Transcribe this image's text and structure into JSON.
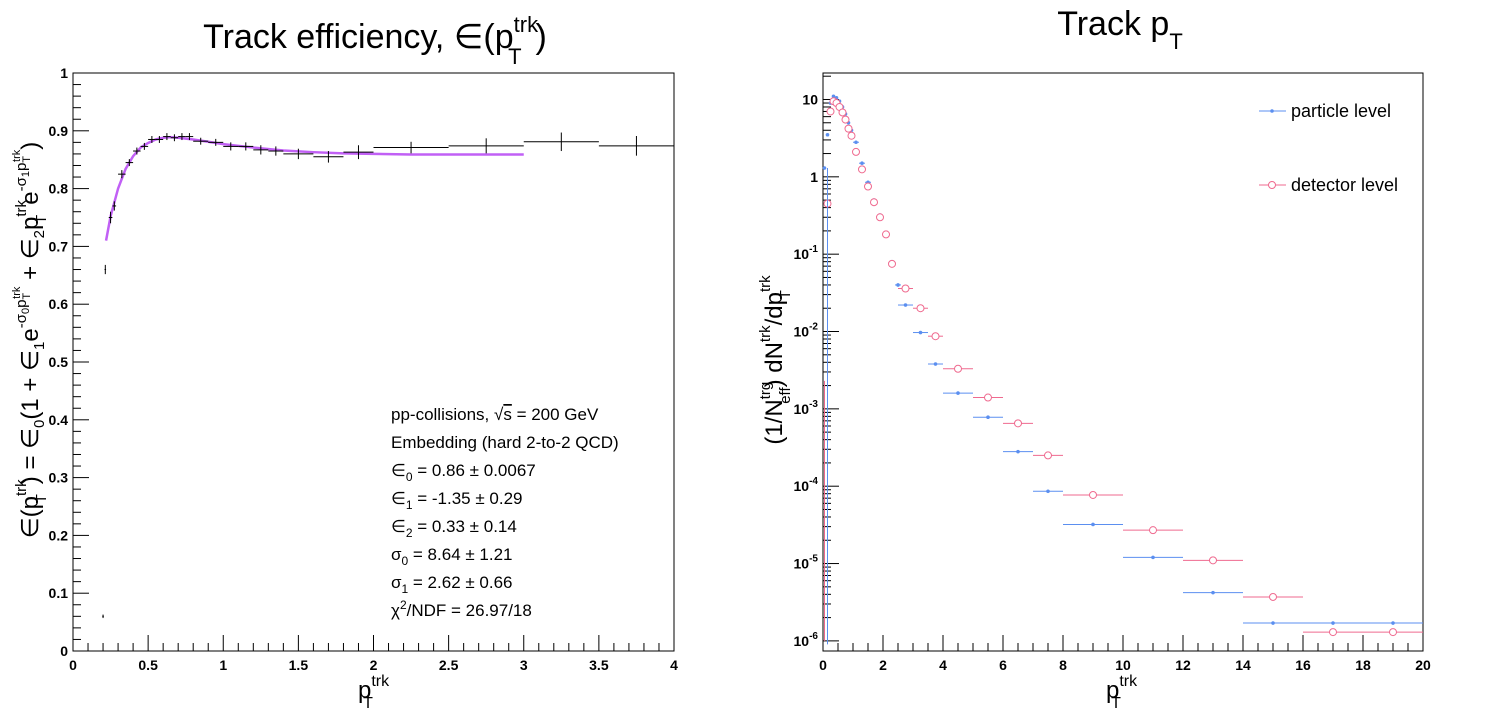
{
  "chart_data": [
    {
      "type": "scatter",
      "title": "Track efficiency, ∈(p_T^trk)",
      "title_parts": {
        "main": "Track efficiency, ∈(p",
        "sup": "trk",
        "sub": "T",
        "close": ")"
      },
      "xlabel_parts": {
        "main": "p",
        "sup": "trk",
        "sub": "T"
      },
      "ylabel": "∈(p_T^trk) = ∈_0(1 + ∈_1 e^(-σ_0 p_T^trk) + ∈_2 p_T^trk e^(-σ_1 p_T^trk))",
      "xlim": [
        0,
        4
      ],
      "ylim": [
        0,
        1
      ],
      "x_ticks": [
        "0",
        "0.5",
        "1",
        "1.5",
        "2",
        "2.5",
        "3",
        "3.5",
        "4"
      ],
      "y_ticks": [
        "0",
        "0.1",
        "0.2",
        "0.3",
        "0.4",
        "0.5",
        "0.6",
        "0.7",
        "0.8",
        "0.9",
        "1"
      ],
      "grid": false,
      "series": [
        {
          "marker": "error-cross",
          "color": "#000000",
          "x": [
            0.2,
            0.215,
            0.25,
            0.275,
            0.325,
            0.375,
            0.425,
            0.475,
            0.525,
            0.575,
            0.625,
            0.675,
            0.725,
            0.775,
            0.85,
            0.95,
            1.05,
            1.15,
            1.25,
            1.35,
            1.5,
            1.7,
            1.9,
            2.25,
            2.75,
            3.25,
            3.75
          ],
          "x_err": [
            0.005,
            0.005,
            0.012,
            0.012,
            0.025,
            0.025,
            0.025,
            0.025,
            0.025,
            0.025,
            0.025,
            0.025,
            0.025,
            0.025,
            0.05,
            0.05,
            0.05,
            0.05,
            0.05,
            0.05,
            0.1,
            0.1,
            0.1,
            0.25,
            0.25,
            0.25,
            0.25
          ],
          "y": [
            0.06,
            0.66,
            0.75,
            0.77,
            0.825,
            0.845,
            0.865,
            0.873,
            0.885,
            0.885,
            0.89,
            0.888,
            0.89,
            0.89,
            0.882,
            0.88,
            0.873,
            0.873,
            0.867,
            0.865,
            0.86,
            0.855,
            0.863,
            0.871,
            0.874,
            0.881,
            0.874
          ],
          "y_err": [
            0.003,
            0.008,
            0.01,
            0.008,
            0.007,
            0.006,
            0.006,
            0.006,
            0.006,
            0.006,
            0.006,
            0.006,
            0.006,
            0.006,
            0.006,
            0.006,
            0.007,
            0.007,
            0.008,
            0.008,
            0.009,
            0.01,
            0.012,
            0.01,
            0.013,
            0.016,
            0.017
          ]
        },
        {
          "marker": "line",
          "color": "#c160f5",
          "description_visible": false,
          "x": [
            0.22,
            0.25,
            0.3,
            0.35,
            0.4,
            0.45,
            0.5,
            0.55,
            0.6,
            0.65,
            0.7,
            0.8,
            0.9,
            1.0,
            1.2,
            1.4,
            1.6,
            1.8,
            2.0,
            2.25,
            2.5,
            2.75,
            3.0
          ],
          "y": [
            0.71,
            0.752,
            0.8,
            0.834,
            0.856,
            0.871,
            0.879,
            0.885,
            0.888,
            0.889,
            0.888,
            0.885,
            0.881,
            0.877,
            0.871,
            0.866,
            0.863,
            0.861,
            0.86,
            0.859,
            0.859,
            0.859,
            0.859
          ]
        }
      ],
      "annotation_lines": [
        {
          "kind": "sqrt",
          "pre": "pp-collisions, ",
          "rad": "s",
          "post": " = 200 GeV",
          "color": "#000000"
        },
        {
          "kind": "plain",
          "text": "Embedding (hard 2-to-2 QCD)",
          "color": "#000000"
        },
        {
          "kind": "sub",
          "sym": "∈",
          "sub": "0",
          "rest": " = 0.86 ± 0.0067",
          "color": "#000000"
        },
        {
          "kind": "sub",
          "sym": "∈",
          "sub": "1",
          "rest": " = -1.35 ± 0.29",
          "color": "#000000"
        },
        {
          "kind": "sub",
          "sym": "∈",
          "sub": "2",
          "rest": " = 0.33 ± 0.14",
          "color": "#000000"
        },
        {
          "kind": "sub",
          "sym": "σ",
          "sub": "0",
          "rest": " = 8.64 ± 1.21",
          "color": "#000000"
        },
        {
          "kind": "sub",
          "sym": "σ",
          "sub": "1",
          "rest": " = 2.62 ± 0.66",
          "color": "#000000"
        },
        {
          "kind": "sup",
          "sym": "χ",
          "sup": "2",
          "rest": "/NDF = 26.97/18",
          "color": "#c160f5"
        }
      ]
    },
    {
      "type": "scatter",
      "title": "Track p_T",
      "title_parts": {
        "main": "Track p",
        "sub": "T"
      },
      "xlabel_parts": {
        "main": "p",
        "sup": "trk",
        "sub": "T"
      },
      "ylabel": "(1/N_eff^trg) dN^trk/dp_T^trk",
      "xlim": [
        0,
        20
      ],
      "ylim": [
        7.4e-07,
        22
      ],
      "y_scale": "log",
      "x_ticks": [
        "0",
        "2",
        "4",
        "6",
        "8",
        "10",
        "12",
        "14",
        "16",
        "18",
        "20"
      ],
      "y_ticks": [
        {
          "value": 1e-06,
          "base": "10",
          "exp": "-6"
        },
        {
          "value": 1e-05,
          "base": "10",
          "exp": "-5"
        },
        {
          "value": 0.0001,
          "base": "10",
          "exp": "-4"
        },
        {
          "value": 0.001,
          "base": "10",
          "exp": "-3"
        },
        {
          "value": 0.01,
          "base": "10",
          "exp": "-2"
        },
        {
          "value": 0.1,
          "base": "10",
          "exp": "-1"
        },
        {
          "value": 1,
          "base": "1",
          "exp": ""
        },
        {
          "value": 10,
          "base": "10",
          "exp": ""
        }
      ],
      "grid": false,
      "legend": "top-right",
      "series": [
        {
          "name": "particle level",
          "color": "#5b8ff0",
          "marker": "dot",
          "x": [
            0.05,
            0.15,
            0.25,
            0.35,
            0.45,
            0.55,
            0.65,
            0.75,
            0.85,
            0.95,
            1.1,
            1.3,
            1.5,
            1.7,
            1.9,
            2.1,
            2.3,
            2.5,
            2.75,
            3.25,
            3.75,
            4.5,
            5.5,
            6.5,
            7.5,
            9,
            11,
            13,
            15,
            17,
            19
          ],
          "x_err": [
            0.05,
            0.05,
            0.05,
            0.05,
            0.05,
            0.05,
            0.05,
            0.05,
            0.05,
            0.05,
            0.1,
            0.1,
            0.1,
            0.1,
            0.1,
            0.1,
            0.1,
            0.1,
            0.25,
            0.25,
            0.25,
            0.5,
            0.5,
            0.5,
            0.5,
            1,
            1,
            1,
            1,
            1,
            1
          ],
          "y": [
            1.3,
            3.5,
            9.0,
            11.0,
            10.5,
            9.5,
            8.0,
            6.5,
            5.0,
            4.0,
            2.8,
            1.5,
            0.85,
            0.5,
            0.32,
            0.19,
            0.08,
            0.04,
            0.022,
            0.0097,
            0.0038,
            0.0016,
            0.00078,
            0.00028,
            8.6e-05,
            3.2e-05,
            1.2e-05,
            4.2e-06,
            1.7e-06,
            1.7e-06,
            1.7e-06
          ]
        },
        {
          "name": "detector level",
          "color": "#ef6a8f",
          "marker": "open-circle",
          "x": [
            0.15,
            0.25,
            0.35,
            0.45,
            0.55,
            0.65,
            0.75,
            0.85,
            0.95,
            1.1,
            1.3,
            1.5,
            1.7,
            1.9,
            2.1,
            2.3,
            2.75,
            3.25,
            3.75,
            4.5,
            5.5,
            6.5,
            7.5,
            9,
            11,
            13,
            15,
            17,
            19
          ],
          "x_err": [
            0.05,
            0.05,
            0.05,
            0.05,
            0.05,
            0.05,
            0.05,
            0.05,
            0.05,
            0.1,
            0.1,
            0.1,
            0.1,
            0.1,
            0.1,
            0.1,
            0.25,
            0.25,
            0.25,
            0.5,
            0.5,
            0.5,
            0.5,
            1,
            1,
            1,
            1,
            1,
            1
          ],
          "y": [
            0.45,
            7.0,
            9.5,
            9.0,
            8.0,
            6.8,
            5.5,
            4.2,
            3.4,
            2.1,
            1.25,
            0.75,
            0.47,
            0.3,
            0.18,
            0.075,
            0.036,
            0.02,
            0.0087,
            0.0033,
            0.0014,
            0.00065,
            0.00025,
            7.7e-05,
            2.7e-05,
            1.1e-05,
            3.7e-06,
            1.3e-06,
            1.3e-06
          ]
        }
      ]
    }
  ]
}
